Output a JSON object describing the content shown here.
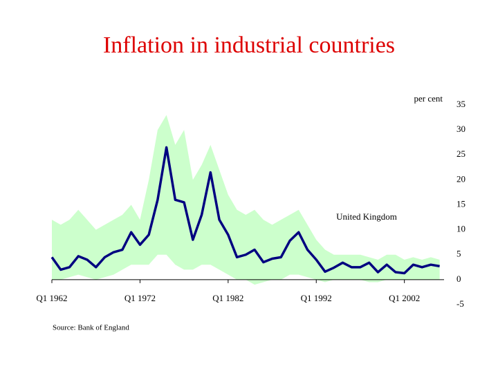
{
  "chart_data": {
    "type": "line",
    "title": "Inflation in industrial countries",
    "y_label": "per cent",
    "annotation": "United Kingdom",
    "source": "Source: Bank of England",
    "x": [
      1962,
      1963,
      1964,
      1965,
      1966,
      1967,
      1968,
      1969,
      1970,
      1971,
      1972,
      1973,
      1974,
      1975,
      1976,
      1977,
      1978,
      1979,
      1980,
      1981,
      1982,
      1983,
      1984,
      1985,
      1986,
      1987,
      1988,
      1989,
      1990,
      1991,
      1992,
      1993,
      1994,
      1995,
      1996,
      1997,
      1998,
      1999,
      2000,
      2001,
      2002,
      2003,
      2004,
      2005,
      2006
    ],
    "band": {
      "color": "#ccffcc",
      "high": [
        12,
        11,
        12,
        14,
        12,
        10,
        11,
        12,
        13,
        15,
        12,
        20,
        30,
        33,
        27,
        30,
        20,
        23,
        27,
        22,
        17,
        14,
        13,
        14,
        12,
        11,
        12,
        13,
        14,
        11,
        8,
        6,
        5,
        5,
        5,
        5,
        4.5,
        4,
        5,
        5,
        4,
        4.5,
        4,
        4.5,
        4
      ],
      "low": [
        0,
        0,
        0.5,
        1,
        0.5,
        0,
        0.5,
        1,
        2,
        3,
        3,
        3,
        5,
        5,
        3,
        2,
        2,
        3,
        3,
        2,
        1,
        0,
        0,
        -1,
        -0.5,
        0,
        0,
        1,
        1,
        0.5,
        0,
        -0.5,
        0,
        0,
        0,
        0,
        -0.5,
        -0.5,
        0,
        0,
        0,
        0,
        0,
        0,
        0
      ]
    },
    "series": [
      {
        "name": "United Kingdom",
        "color": "#000080",
        "values": [
          4.5,
          2,
          2.5,
          4.7,
          4,
          2.5,
          4.5,
          5.5,
          6,
          9.5,
          7,
          9,
          16,
          26.5,
          16,
          15.5,
          8,
          13,
          21.5,
          12,
          9,
          4.5,
          5,
          6,
          3.5,
          4.2,
          4.5,
          7.8,
          9.5,
          6,
          4,
          1.6,
          2.4,
          3.4,
          2.5,
          2.5,
          3.4,
          1.5,
          3,
          1.5,
          1.3,
          3,
          2.5,
          3,
          2.7
        ]
      }
    ],
    "xlim": [
      1962,
      2006.5
    ],
    "xticks": [
      {
        "value": 1962,
        "label": "Q1 1962"
      },
      {
        "value": 1972,
        "label": "Q1 1972"
      },
      {
        "value": 1982,
        "label": "Q1 1982"
      },
      {
        "value": 1992,
        "label": "Q1 1992"
      },
      {
        "value": 2002,
        "label": "Q1 2002"
      }
    ],
    "ylim": [
      -5,
      35
    ],
    "yticks": [
      35,
      30,
      25,
      20,
      15,
      10,
      5,
      0,
      -5
    ]
  }
}
